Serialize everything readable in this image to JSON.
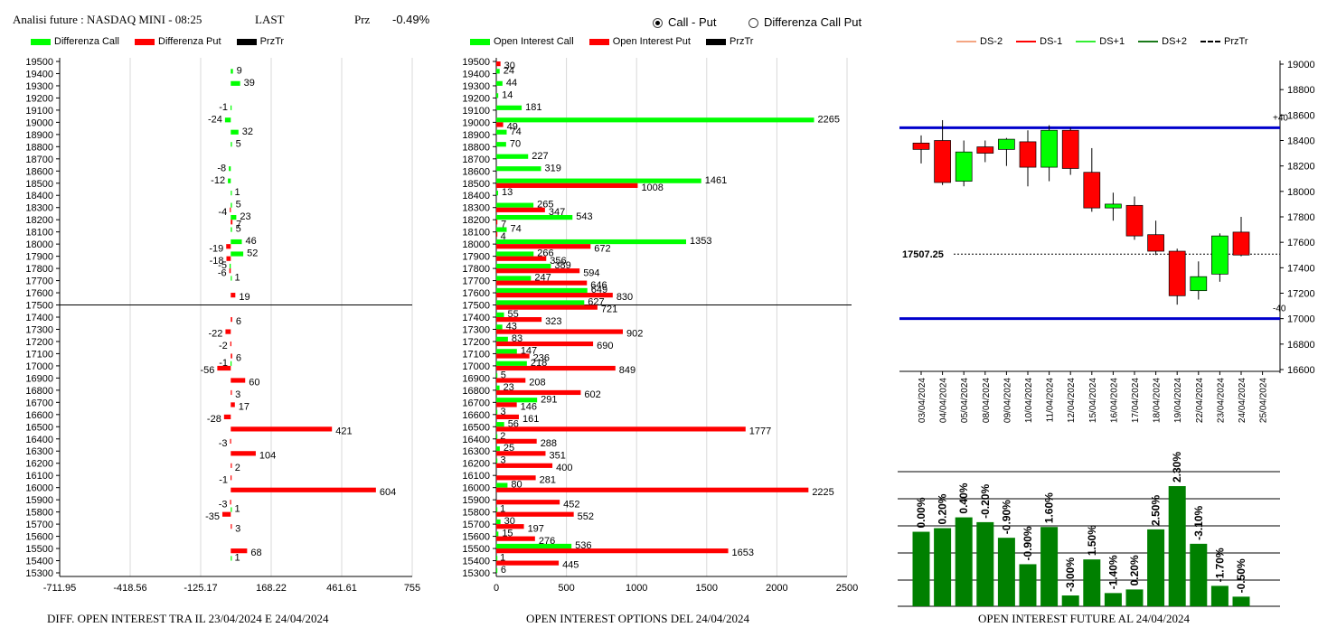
{
  "header": {
    "title": "Analisi future : NASDAQ MINI - 08:25",
    "last_label": "LAST",
    "prz_label": "Prz",
    "prz_value": "-0.49%"
  },
  "radio": {
    "call_put": "Call - Put",
    "diff_call_put": "Differenza Call Put",
    "selected": "call_put"
  },
  "colors": {
    "green": "#00ff00",
    "red": "#ff0000",
    "black": "#000000",
    "dark_green": "#008000",
    "blue": "#0000cc",
    "ds_minus2": "#f4a582",
    "ds_minus1": "#ff0000",
    "ds_plus1": "#33ee33",
    "ds_plus2": "#1a7a1a"
  },
  "legend1": [
    "Differenza Call",
    "Differenza Put",
    "PrzTr"
  ],
  "legend2": [
    "Open Interest Call",
    "Open Interest Put",
    "PrzTr"
  ],
  "legend3": [
    "DS-2",
    "DS-1",
    "DS+1",
    "DS+2",
    "PrzTr"
  ],
  "captions": {
    "c1": "DIFF. OPEN INTEREST TRA IL 23/04/2024 E 24/04/2024",
    "c2": "OPEN INTEREST OPTIONS DEL 24/04/2024",
    "c3": "OPEN INTEREST FUTURE AL 24/04/2024"
  },
  "chart_data": [
    {
      "type": "bar",
      "orientation": "horizontal",
      "strikes": [
        19500,
        19400,
        19300,
        19200,
        19100,
        19000,
        18900,
        18800,
        18700,
        18600,
        18500,
        18400,
        18300,
        18200,
        18100,
        18000,
        17900,
        17800,
        17700,
        17600,
        17500,
        17400,
        17300,
        17200,
        17100,
        17000,
        16900,
        16800,
        16700,
        16600,
        16500,
        16400,
        16300,
        16200,
        16100,
        16000,
        15900,
        15800,
        15700,
        15600,
        15500,
        15400,
        15300
      ],
      "series": [
        {
          "name": "Differenza Call",
          "color": "#00ff00",
          "values": [
            null,
            9,
            39,
            null,
            -1,
            -24,
            32,
            5,
            null,
            -8,
            -12,
            1,
            5,
            23,
            5,
            46,
            52,
            -5,
            1,
            null,
            null,
            null,
            null,
            null,
            null,
            -1,
            null,
            null,
            null,
            null,
            null,
            null,
            null,
            null,
            null,
            null,
            null,
            1,
            null,
            null,
            null,
            1,
            null
          ]
        },
        {
          "name": "Differenza Put",
          "color": "#ff0000",
          "values": [
            null,
            null,
            null,
            null,
            null,
            null,
            null,
            null,
            null,
            null,
            null,
            null,
            -4,
            7,
            null,
            -19,
            -18,
            -6,
            null,
            19,
            null,
            6,
            -22,
            -2,
            6,
            -56,
            60,
            3,
            17,
            -28,
            421,
            -3,
            104,
            2,
            -1,
            604,
            -3,
            -35,
            3,
            null,
            68,
            null,
            null
          ]
        }
      ],
      "przTr": 17500,
      "xticks": [
        "-711.95",
        "-418.56",
        "-125.17",
        "168.22",
        "461.61",
        "755"
      ],
      "xlim": [
        -711.95,
        755
      ]
    },
    {
      "type": "bar",
      "orientation": "horizontal",
      "strikes": [
        19500,
        19400,
        19300,
        19200,
        19100,
        19000,
        18900,
        18800,
        18700,
        18600,
        18500,
        18400,
        18300,
        18200,
        18100,
        18000,
        17900,
        17800,
        17700,
        17600,
        17500,
        17400,
        17300,
        17200,
        17100,
        17000,
        16900,
        16800,
        16700,
        16600,
        16500,
        16400,
        16300,
        16200,
        16100,
        16000,
        15900,
        15800,
        15700,
        15600,
        15500,
        15400,
        15300
      ],
      "series": [
        {
          "name": "Open Interest Call",
          "color": "#00ff00",
          "values": [
            null,
            24,
            44,
            14,
            181,
            2265,
            74,
            70,
            227,
            319,
            1461,
            13,
            265,
            543,
            74,
            1353,
            266,
            389,
            247,
            649,
            627,
            55,
            43,
            83,
            147,
            218,
            5,
            23,
            291,
            3,
            56,
            2,
            25,
            3,
            null,
            80,
            null,
            1,
            30,
            15,
            536,
            1,
            6
          ]
        },
        {
          "name": "Open Interest Put",
          "color": "#ff0000",
          "values": [
            30,
            null,
            null,
            null,
            null,
            49,
            null,
            null,
            null,
            null,
            1008,
            null,
            347,
            7,
            4,
            672,
            356,
            594,
            646,
            830,
            721,
            323,
            902,
            690,
            236,
            849,
            208,
            602,
            146,
            161,
            1777,
            288,
            351,
            400,
            281,
            2225,
            452,
            552,
            197,
            276,
            1653,
            445,
            null
          ]
        }
      ],
      "przTr": 17500,
      "xticks": [
        "0",
        "500",
        "1000",
        "1500",
        "2000",
        "2500"
      ],
      "xlim": [
        0,
        2500
      ]
    },
    {
      "type": "candlestick",
      "dates": [
        "03/04/2024",
        "04/04/2024",
        "05/04/2024",
        "08/04/2024",
        "09/04/2024",
        "10/04/2024",
        "11/04/2024",
        "12/04/2024",
        "15/04/2024",
        "16/04/2024",
        "17/04/2024",
        "18/04/2024",
        "19/04/2024",
        "22/04/2024",
        "23/04/2024",
        "24/04/2024",
        "25/04/2024"
      ],
      "ohlc": [
        [
          18380,
          18440,
          18220,
          18330
        ],
        [
          18400,
          18560,
          18050,
          18070
        ],
        [
          18080,
          18400,
          18040,
          18310
        ],
        [
          18350,
          18400,
          18230,
          18300
        ],
        [
          18330,
          18420,
          18200,
          18410
        ],
        [
          18390,
          18480,
          18040,
          18190
        ],
        [
          18190,
          18520,
          18080,
          18480
        ],
        [
          18480,
          18500,
          18130,
          18180
        ],
        [
          18150,
          18340,
          17840,
          17870
        ],
        [
          17870,
          17990,
          17770,
          17900
        ],
        [
          17890,
          17960,
          17620,
          17650
        ],
        [
          17660,
          17770,
          17500,
          17530
        ],
        [
          17530,
          17550,
          17110,
          17180
        ],
        [
          17220,
          17450,
          17150,
          17330
        ],
        [
          17350,
          17670,
          17290,
          17650
        ],
        [
          17680,
          17800,
          17490,
          17500
        ]
      ],
      "bands": {
        "upper": 18500,
        "lower": 17000,
        "upper_label": "+40",
        "lower_label": "-40"
      },
      "przTr": 17507.25,
      "przTr_label": "17507.25",
      "yticks": [
        "19000",
        "18800",
        "18600",
        "18400",
        "18200",
        "18000",
        "17800",
        "17600",
        "17400",
        "17200",
        "17000",
        "16800",
        "16600"
      ],
      "ylim": [
        16600,
        19000
      ]
    },
    {
      "type": "bar",
      "orientation": "vertical",
      "values": [
        0.0,
        0.2,
        0.4,
        -0.2,
        -0.9,
        -0.9,
        1.6,
        -3.0,
        1.5,
        -1.4,
        0.2,
        2.5,
        2.3,
        -3.1,
        -1.7,
        -0.5
      ],
      "labels": [
        "0.00%",
        "0.20%",
        "0.40%",
        "-0.20%",
        "-0.90%",
        "-0.90%",
        "1.60%",
        "-3.00%",
        "1.50%",
        "-1.40%",
        "0.20%",
        "2.50%",
        "2.30%",
        "-3.10%",
        "-1.70%",
        "-0.50%"
      ],
      "heights": [
        0.62,
        0.65,
        0.74,
        0.7,
        0.57,
        0.35,
        0.66,
        0.09,
        0.39,
        0.11,
        0.14,
        0.64,
        1.0,
        0.52,
        0.17,
        0.08
      ],
      "color": "#008000"
    }
  ]
}
